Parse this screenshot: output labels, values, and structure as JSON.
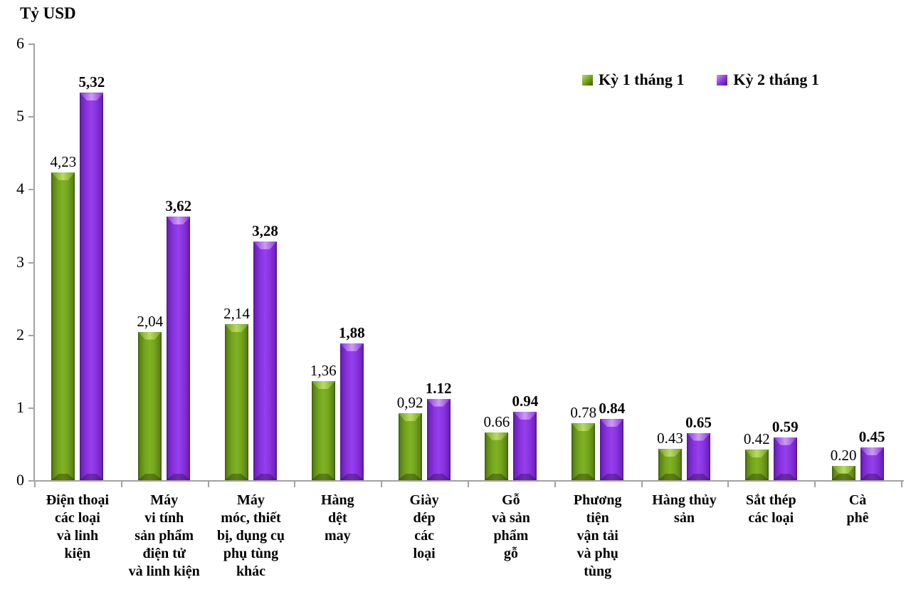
{
  "title": "Tỷ USD",
  "chart_data": {
    "type": "bar",
    "title": "Tỷ USD",
    "ylabel": "Tỷ USD",
    "xlabel": "",
    "ylim": [
      0,
      6
    ],
    "yticks": [
      0,
      1,
      2,
      3,
      4,
      5,
      6
    ],
    "grid": false,
    "legend_position": "top-right",
    "categories": [
      "Điện thoại\ncác loại\nvà linh\nkiện",
      "Máy\nvi tính\nsản phẩm\nđiện tử\nvà linh kiện",
      "Máy\nmóc, thiết\nbị, dụng cụ\nphụ tùng\nkhác",
      "Hàng\ndệt\nmay",
      "Giày\ndép\ncác\nloại",
      "Gỗ\nvà sản\nphẩm\ngỗ",
      "Phương\ntiện\nvận tải\nvà phụ\ntùng",
      "Hàng thủy\nsản",
      "Sắt thép\ncác loại",
      "Cà\nphê"
    ],
    "series": [
      {
        "name": "Kỳ 1 tháng 1",
        "color": "#6f9e1b",
        "values": [
          4.23,
          2.04,
          2.14,
          1.36,
          0.92,
          0.66,
          0.78,
          0.43,
          0.42,
          0.2
        ],
        "value_labels": [
          "4,23",
          "2,04",
          "2,14",
          "1,36",
          "0,92",
          "0.66",
          "0.78",
          "0.43",
          "0.42",
          "0.20"
        ],
        "label_bold": false
      },
      {
        "name": "Kỳ 2 tháng 1",
        "color": "#8a33e0",
        "values": [
          5.32,
          3.62,
          3.28,
          1.88,
          1.12,
          0.94,
          0.84,
          0.65,
          0.59,
          0.45
        ],
        "value_labels": [
          "5,32",
          "3,62",
          "3,28",
          "1,88",
          "1.12",
          "0.94",
          "0.84",
          "0.65",
          "0.59",
          "0.45"
        ],
        "label_bold": true
      }
    ]
  }
}
